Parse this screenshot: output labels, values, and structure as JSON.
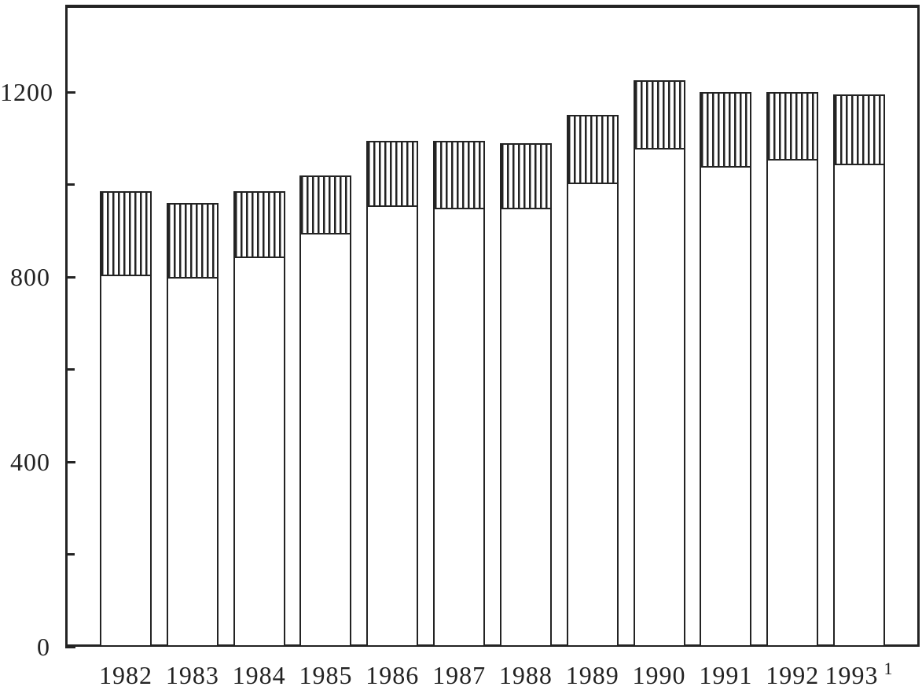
{
  "chart_data": {
    "type": "bar",
    "stacked": true,
    "title": "",
    "xlabel": "",
    "ylabel": "",
    "grid": false,
    "legend": false,
    "categories": [
      "1982",
      "1983",
      "1984",
      "1985",
      "1986",
      "1987",
      "1988",
      "1989",
      "1990",
      "1991",
      "1992",
      "1993"
    ],
    "series": [
      {
        "name": "base-plain-segment",
        "values": [
          805,
          800,
          845,
          895,
          955,
          950,
          950,
          1005,
          1080,
          1040,
          1055,
          1045
        ]
      },
      {
        "name": "top-hatched-segment",
        "values": [
          180,
          160,
          140,
          125,
          140,
          145,
          140,
          145,
          145,
          160,
          145,
          150
        ]
      }
    ],
    "totals": [
      985,
      960,
      985,
      1020,
      1095,
      1095,
      1090,
      1150,
      1225,
      1200,
      1200,
      1195
    ],
    "ylim": [
      0,
      1390
    ],
    "y_ticks": [
      {
        "value": 0,
        "label": "0"
      },
      {
        "value": 400,
        "label": "400"
      },
      {
        "value": 800,
        "label": "800"
      },
      {
        "value": 1200,
        "label": "1200"
      }
    ],
    "y_minor_ticks": [
      200,
      600,
      1000
    ],
    "footnote": {
      "category": "1993",
      "marker": "1"
    }
  },
  "colors": {
    "ink": "#232323",
    "background": "#ffffff"
  }
}
